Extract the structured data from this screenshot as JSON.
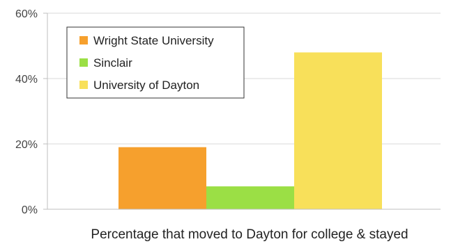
{
  "chart_data": {
    "type": "bar",
    "categories": [
      "Percentage that moved to Dayton for college & stayed"
    ],
    "series": [
      {
        "name": "Wright State University",
        "values": [
          19
        ],
        "color": "#F6A02D"
      },
      {
        "name": "Sinclair",
        "values": [
          7
        ],
        "color": "#9BDF45"
      },
      {
        "name": "University of Dayton",
        "values": [
          48
        ],
        "color": "#F8E05A"
      }
    ],
    "title": "",
    "xlabel": "Percentage that moved to Dayton for college & stayed",
    "ylabel": "",
    "ylim": [
      0,
      60
    ],
    "yticks": [
      {
        "value": 0,
        "label": "0%"
      },
      {
        "value": 20,
        "label": "20%"
      },
      {
        "value": 40,
        "label": "40%"
      },
      {
        "value": 60,
        "label": "60%"
      }
    ],
    "grid": true,
    "legend_position": "top-left",
    "gridline_color": "#D9D9D9",
    "axis_color": "#BFBFBF"
  }
}
